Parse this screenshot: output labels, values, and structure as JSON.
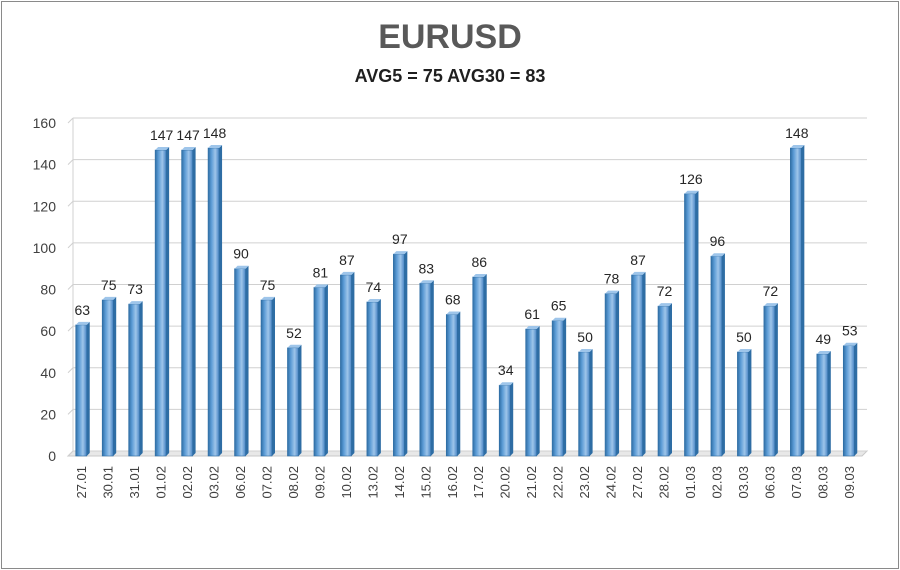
{
  "chart_data": {
    "type": "bar",
    "title": "EURUSD",
    "subtitle": "AVG5 = 75 AVG30 = 83",
    "categories": [
      "27.01",
      "30.01",
      "31.01",
      "01.02",
      "02.02",
      "03.02",
      "06.02",
      "07.02",
      "08.02",
      "09.02",
      "10.02",
      "13.02",
      "14.02",
      "15.02",
      "16.02",
      "17.02",
      "20.02",
      "21.02",
      "22.02",
      "23.02",
      "24.02",
      "27.02",
      "28.02",
      "01.03",
      "02.03",
      "03.03",
      "06.03",
      "07.03",
      "08.03",
      "09.03"
    ],
    "values": [
      63,
      75,
      73,
      147,
      147,
      148,
      90,
      75,
      52,
      81,
      87,
      74,
      97,
      83,
      68,
      86,
      34,
      61,
      65,
      50,
      78,
      87,
      72,
      126,
      96,
      50,
      72,
      148,
      49,
      53
    ],
    "ylim": [
      0,
      160
    ],
    "yticks": [
      0,
      20,
      40,
      60,
      80,
      100,
      120,
      140,
      160
    ],
    "grid": true,
    "data_labels": true,
    "bar_color": "#5b9bd5",
    "bar_dark": "#2e6da4",
    "bar_light": "#9ec5ea"
  }
}
